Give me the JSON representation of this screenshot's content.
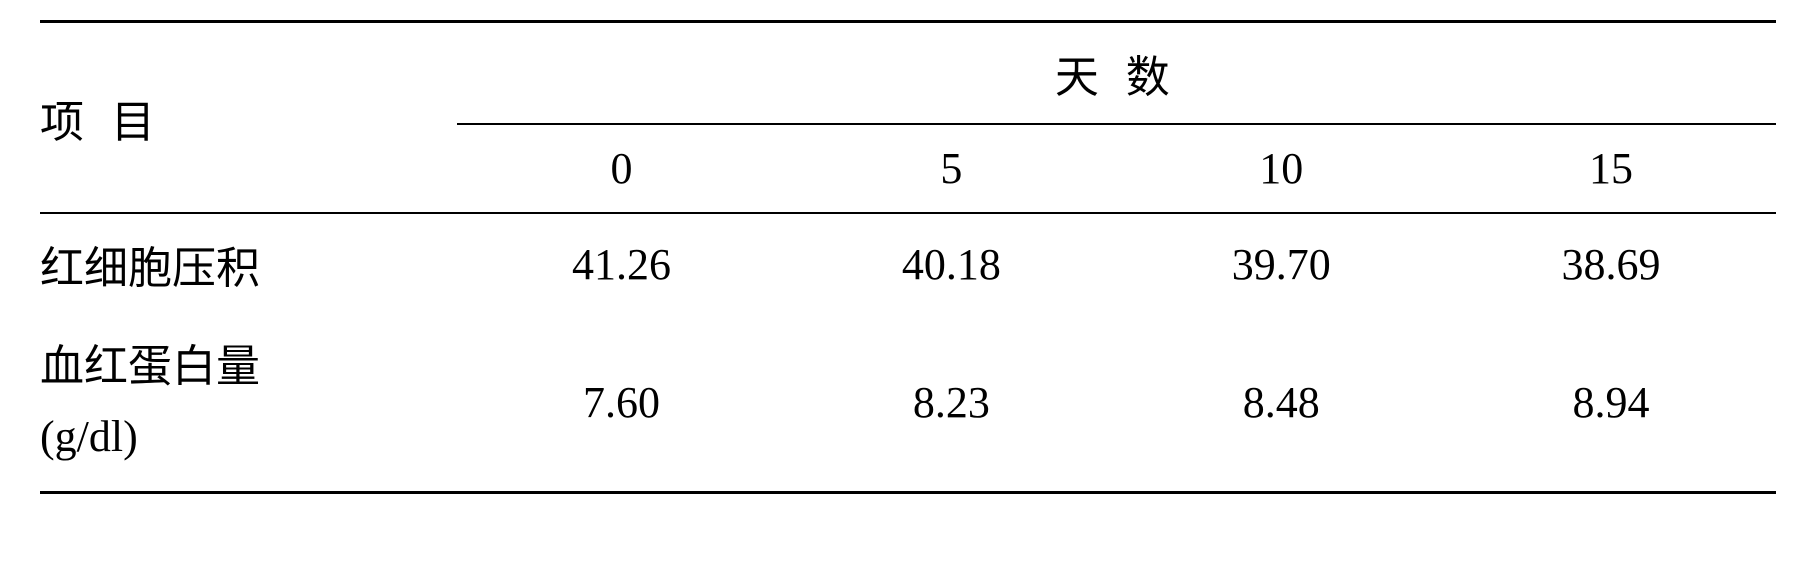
{
  "table": {
    "type": "table",
    "background_color": "#ffffff",
    "text_color": "#000000",
    "border_color": "#000000",
    "font_size_pt": 44,
    "font_family": "SimSun",
    "header": {
      "row_label": "项 目",
      "span_header": "天 数",
      "days": [
        "0",
        "5",
        "10",
        "15"
      ]
    },
    "rows": [
      {
        "label": "红细胞压积",
        "values": [
          "41.26",
          "40.18",
          "39.70",
          "38.69"
        ]
      },
      {
        "label_line1": "血红蛋白量",
        "label_line2": "(g/dl)",
        "values": [
          "7.60",
          "8.23",
          "8.48",
          "8.94"
        ]
      }
    ]
  }
}
